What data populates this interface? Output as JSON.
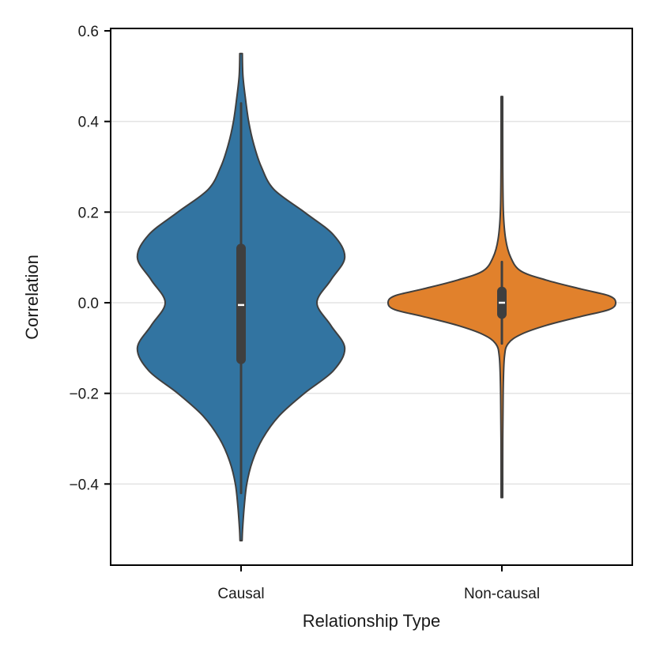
{
  "chart_data": {
    "type": "violin",
    "title": "",
    "xlabel": "Relationship Type",
    "ylabel": "Correlation",
    "ylim": [
      -0.58,
      0.6
    ],
    "yticks": [
      0.6,
      0.4,
      0.2,
      0.0,
      -0.2,
      -0.4
    ],
    "ytick_labels": [
      "0.6",
      "0.4",
      "0.2",
      "0.0",
      "−0.2",
      "−0.4"
    ],
    "grid": "horizontal",
    "categories": [
      "Causal",
      "Non-causal"
    ],
    "series": [
      {
        "name": "Causal",
        "color": "#3274a1",
        "min": -0.525,
        "max": 0.55,
        "whisker_low": -0.42,
        "whisker_high": 0.44,
        "q1": -0.125,
        "q3": 0.12,
        "median": -0.005,
        "density": [
          [
            0.55,
            0.01
          ],
          [
            0.5,
            0.015
          ],
          [
            0.45,
            0.035
          ],
          [
            0.4,
            0.06
          ],
          [
            0.35,
            0.1
          ],
          [
            0.3,
            0.16
          ],
          [
            0.25,
            0.26
          ],
          [
            0.2,
            0.5
          ],
          [
            0.15,
            0.73
          ],
          [
            0.1,
            0.82
          ],
          [
            0.05,
            0.71
          ],
          [
            0.0,
            0.6
          ],
          [
            -0.05,
            0.71
          ],
          [
            -0.1,
            0.82
          ],
          [
            -0.15,
            0.73
          ],
          [
            -0.2,
            0.5
          ],
          [
            -0.25,
            0.3
          ],
          [
            -0.3,
            0.17
          ],
          [
            -0.35,
            0.09
          ],
          [
            -0.4,
            0.045
          ],
          [
            -0.45,
            0.025
          ],
          [
            -0.5,
            0.012
          ],
          [
            -0.525,
            0.008
          ]
        ]
      },
      {
        "name": "Non-causal",
        "color": "#e1812c",
        "min": -0.43,
        "max": 0.455,
        "whisker_low": -0.09,
        "whisker_high": 0.09,
        "q1": -0.025,
        "q3": 0.025,
        "median": 0.0,
        "density": [
          [
            0.455,
            0.006
          ],
          [
            0.3,
            0.007
          ],
          [
            0.2,
            0.012
          ],
          [
            0.14,
            0.03
          ],
          [
            0.1,
            0.07
          ],
          [
            0.07,
            0.15
          ],
          [
            0.05,
            0.35
          ],
          [
            0.03,
            0.63
          ],
          [
            0.015,
            0.85
          ],
          [
            0.0,
            0.9
          ],
          [
            -0.015,
            0.85
          ],
          [
            -0.03,
            0.63
          ],
          [
            -0.05,
            0.35
          ],
          [
            -0.07,
            0.15
          ],
          [
            -0.09,
            0.05
          ],
          [
            -0.12,
            0.02
          ],
          [
            -0.2,
            0.01
          ],
          [
            -0.3,
            0.007
          ],
          [
            -0.43,
            0.006
          ]
        ]
      }
    ]
  }
}
